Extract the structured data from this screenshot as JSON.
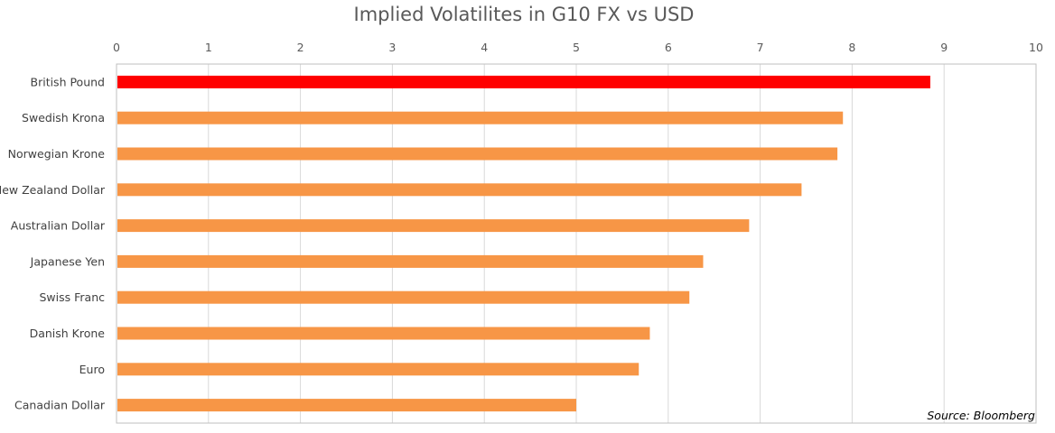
{
  "chart_data": {
    "type": "bar",
    "orientation": "horizontal",
    "title": "Implied Volatilites in G10 FX vs USD",
    "categories": [
      "British Pound",
      "Swedish Krona",
      "Norwegian Krone",
      "New Zealand Dollar",
      "Australian Dollar",
      "Japanese Yen",
      "Swiss Franc",
      "Danish Krone",
      "Euro",
      "Canadian Dollar"
    ],
    "values": [
      8.85,
      7.9,
      7.84,
      7.45,
      6.88,
      6.38,
      6.23,
      5.8,
      5.68,
      5.0
    ],
    "highlight_index": 0,
    "xlim": [
      0,
      10
    ],
    "x_ticks": [
      0,
      1,
      2,
      3,
      4,
      5,
      6,
      7,
      8,
      9,
      10
    ],
    "x_axis_position": "top",
    "grid": true,
    "colors": {
      "highlight": "#FF0000",
      "bar": "#F79646",
      "grid": "#D9D9D9",
      "border": "#BFBFBF"
    },
    "source": "Source: Bloomberg"
  }
}
